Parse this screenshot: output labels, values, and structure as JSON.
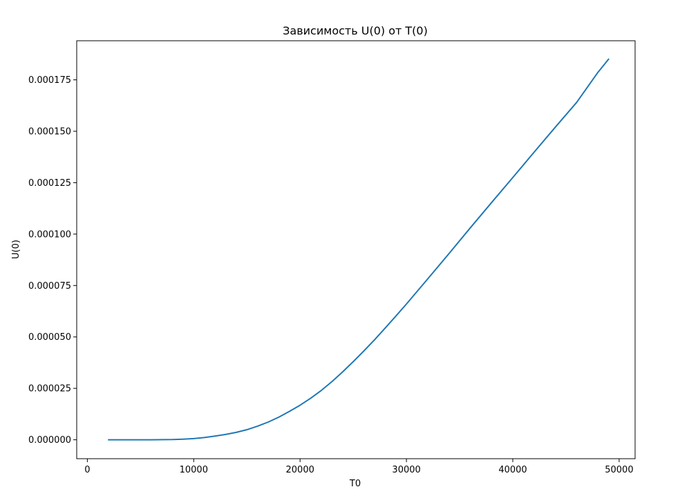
{
  "chart_data": {
    "type": "line",
    "title": "Зависимость U(0) от T(0)",
    "xlabel": "T0",
    "ylabel": "U(0)",
    "xlim": [
      -1000,
      51500
    ],
    "ylim": [
      -9.2e-06,
      0.000194
    ],
    "x_ticks": [
      0,
      10000,
      20000,
      30000,
      40000,
      50000
    ],
    "y_ticks": [
      0,
      2.5e-05,
      5e-05,
      7.5e-05,
      0.0001,
      0.000125,
      0.00015,
      0.000175
    ],
    "x_tick_labels": [
      "0",
      "10000",
      "20000",
      "30000",
      "40000",
      "50000"
    ],
    "y_tick_labels": [
      "0.000000",
      "0.000025",
      "0.000050",
      "0.000075",
      "0.000100",
      "0.000125",
      "0.000150",
      "0.000175"
    ],
    "grid": false,
    "legend": "none",
    "colors": {
      "series": "#1f77b4",
      "axes": "#000000"
    },
    "series": [
      {
        "x": [
          2000,
          4000,
          6000,
          8000,
          9000,
          10000,
          11000,
          12000,
          13000,
          14000,
          15000,
          16000,
          17000,
          18000,
          19000,
          20000,
          21000,
          22000,
          23000,
          24000,
          25000,
          26000,
          27000,
          28000,
          29000,
          30000,
          32000,
          34000,
          36000,
          38000,
          40000,
          42000,
          44000,
          46000,
          48000,
          49000
        ],
        "y": [
          0.0,
          0.0,
          0.0,
          1e-07,
          3e-07,
          6e-07,
          1.1e-06,
          1.8e-06,
          2.6e-06,
          3.6e-06,
          4.9e-06,
          6.6e-06,
          8.6e-06,
          1.1e-05,
          1.38e-05,
          1.68e-05,
          2.02e-05,
          2.4e-05,
          2.83e-05,
          3.3e-05,
          3.8e-05,
          4.32e-05,
          4.86e-05,
          5.43e-05,
          6.01e-05,
          6.6e-05,
          7.82e-05,
          9.05e-05,
          0.000103,
          0.0001153,
          0.0001275,
          0.0001398,
          0.000152,
          0.000164,
          0.0001786,
          0.000185
        ]
      }
    ]
  }
}
